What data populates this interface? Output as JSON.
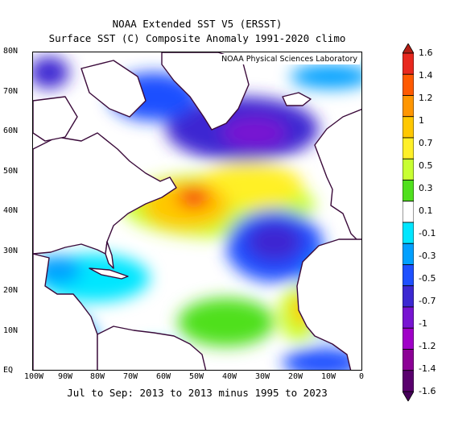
{
  "header": {
    "title": "NOAA Extended SST V5 (ERSST)",
    "subtitle": "Surface SST (C) Composite Anomaly 1991-2020 climo"
  },
  "map": {
    "lab_label": "NOAA Physical Sciences Laboratory",
    "lat_labels": [
      "80N",
      "70N",
      "60N",
      "50N",
      "40N",
      "30N",
      "20N",
      "10N",
      "EQ"
    ],
    "lon_labels": [
      "100W",
      "90W",
      "80W",
      "70W",
      "60W",
      "50W",
      "40W",
      "30W",
      "20W",
      "10W",
      "0"
    ],
    "extent": {
      "lon_min": -100,
      "lon_max": 0,
      "lat_min": 0,
      "lat_max": 80
    },
    "anomaly_features": [
      {
        "name": "subpolar-cold",
        "lon": -33,
        "lat": 62,
        "value": -0.9
      },
      {
        "name": "labrador-cold",
        "lon": -60,
        "lat": 70,
        "value": -0.6
      },
      {
        "name": "gulf-stream-warm",
        "lon": -53,
        "lat": 43,
        "value": 1.3
      },
      {
        "name": "north-atlantic-warm-band",
        "lon": -35,
        "lat": 47,
        "value": 0.8
      },
      {
        "name": "subtropical-cold",
        "lon": -25,
        "lat": 32,
        "value": -0.6
      },
      {
        "name": "caribbean-cool",
        "lon": -82,
        "lat": 22,
        "value": -0.2
      },
      {
        "name": "tropical-warm",
        "lon": -42,
        "lat": 12,
        "value": 0.3
      },
      {
        "name": "west-africa-warm",
        "lon": -17,
        "lat": 15,
        "value": 0.9
      },
      {
        "name": "pacific-cool",
        "lon": -95,
        "lat": 8,
        "value": -0.4
      },
      {
        "name": "gulf-of-guinea-cool",
        "lon": -15,
        "lat": 2,
        "value": -0.5
      }
    ]
  },
  "colorbar": {
    "labels": [
      "1.6",
      "1.4",
      "1.2",
      "1",
      "0.7",
      "0.5",
      "0.3",
      "0.1",
      "-0.1",
      "-0.3",
      "-0.5",
      "-0.7",
      "-1",
      "-1.2",
      "-1.4",
      "-1.6"
    ],
    "colors": [
      "#e8281e",
      "#ff5a00",
      "#ff9600",
      "#ffc800",
      "#fff028",
      "#c8ff32",
      "#50e01e",
      "#ffffff",
      "#00e6ff",
      "#00a0ff",
      "#1e50ff",
      "#3c28d2",
      "#7814d2",
      "#a000c8",
      "#8c0096",
      "#5a006e"
    ],
    "top_arrow_color": "#b41e14",
    "bottom_arrow_color": "#46005a"
  },
  "footer": {
    "caption": "Jul to Sep: 2013 to 2013 minus 1995 to 2023"
  }
}
